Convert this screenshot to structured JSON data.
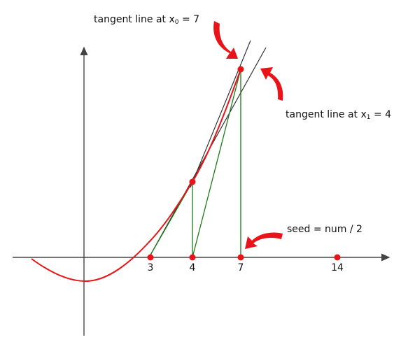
{
  "labels": {
    "tangent_x0": {
      "prefix": "tangent line at x",
      "sub": "0",
      "suffix": " = 7"
    },
    "tangent_x1": {
      "prefix": "tangent line at x",
      "sub": "1",
      "suffix": " = 4"
    },
    "seed": "seed = num / 2"
  },
  "ticks": [
    "3",
    "4",
    "7",
    "14"
  ],
  "colors": {
    "curve": "#e8141a",
    "points": "#e8141a",
    "arrows": "#e8141a",
    "construction": "#1a7a1a",
    "tangents": "#333333",
    "axes": "#444444"
  },
  "icons": {
    "arrow_tangent_x0": "curved-arrow-icon",
    "arrow_tangent_x1": "curved-arrow-icon",
    "arrow_seed": "curved-arrow-icon"
  }
}
